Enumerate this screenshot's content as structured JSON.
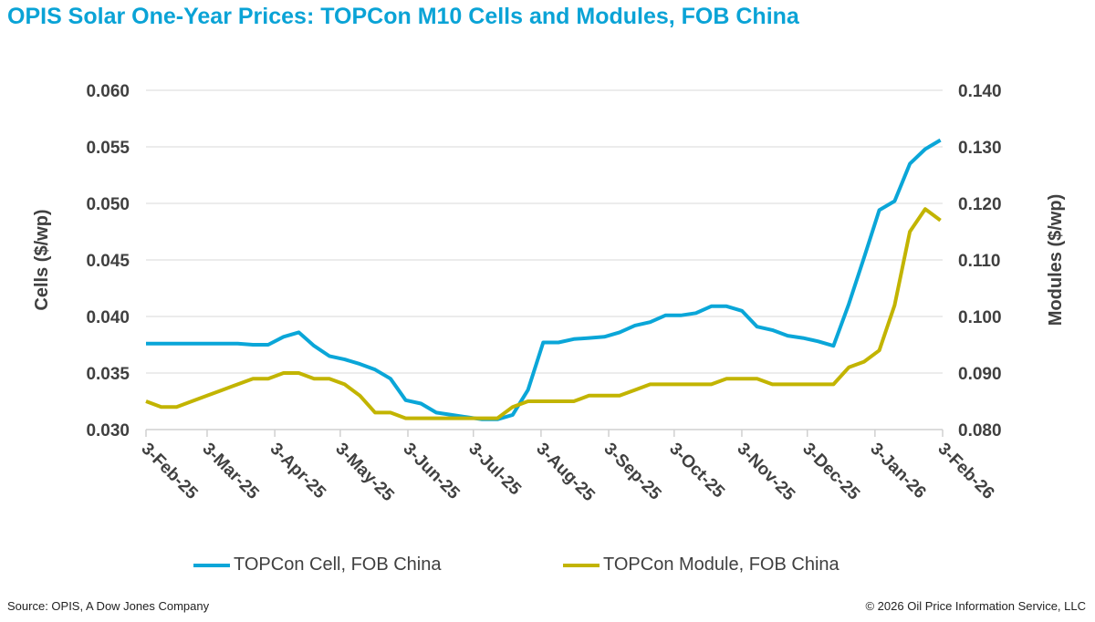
{
  "title": "OPIS Solar One-Year Prices: TOPCon M10 Cells and Modules, FOB China",
  "footer": {
    "source": "Source: OPIS, A Dow Jones Company",
    "copyright": "© 2026 Oil Price Information Service, LLC"
  },
  "chart_data": {
    "type": "line",
    "title": "OPIS Solar One-Year Prices: TOPCon M10 Cells and Modules, FOB China",
    "xlabel": "",
    "ylabel": "Cells ($/wp)",
    "y2label": "Modules ($/wp)",
    "ylim": [
      0.03,
      0.06
    ],
    "y2lim": [
      0.08,
      0.14
    ],
    "yticks": [
      "0.030",
      "0.035",
      "0.040",
      "0.045",
      "0.050",
      "0.055",
      "0.060"
    ],
    "y2ticks": [
      "0.080",
      "0.090",
      "0.100",
      "0.110",
      "0.120",
      "0.130",
      "0.140"
    ],
    "xticks": [
      "3-Feb-25",
      "3-Mar-25",
      "3-Apr-25",
      "3-May-25",
      "3-Jun-25",
      "3-Jul-25",
      "3-Aug-25",
      "3-Sep-25",
      "3-Oct-25",
      "3-Nov-25",
      "3-Dec-25",
      "3-Jan-26",
      "3-Feb-26"
    ],
    "xtick_dates": [
      "2025-02-03",
      "2025-03-03",
      "2025-04-03",
      "2025-05-03",
      "2025-06-03",
      "2025-07-03",
      "2025-08-03",
      "2025-09-03",
      "2025-10-03",
      "2025-11-03",
      "2025-12-03",
      "2026-01-03",
      "2026-02-03"
    ],
    "grid": true,
    "legend_position": "bottom",
    "x": [
      "2025-02-03",
      "2025-02-10",
      "2025-02-17",
      "2025-02-24",
      "2025-03-03",
      "2025-03-10",
      "2025-03-17",
      "2025-03-24",
      "2025-03-31",
      "2025-04-07",
      "2025-04-14",
      "2025-04-21",
      "2025-04-28",
      "2025-05-05",
      "2025-05-12",
      "2025-05-19",
      "2025-05-26",
      "2025-06-02",
      "2025-06-09",
      "2025-06-16",
      "2025-06-23",
      "2025-06-30",
      "2025-07-07",
      "2025-07-14",
      "2025-07-21",
      "2025-07-28",
      "2025-08-04",
      "2025-08-11",
      "2025-08-18",
      "2025-08-25",
      "2025-09-01",
      "2025-09-08",
      "2025-09-15",
      "2025-09-22",
      "2025-09-29",
      "2025-10-06",
      "2025-10-13",
      "2025-10-20",
      "2025-10-27",
      "2025-11-03",
      "2025-11-10",
      "2025-11-17",
      "2025-11-24",
      "2025-12-01",
      "2025-12-08",
      "2025-12-15",
      "2025-12-22",
      "2025-12-29",
      "2026-01-05",
      "2026-01-12",
      "2026-01-19",
      "2026-01-26",
      "2026-02-02"
    ],
    "series": [
      {
        "name": "TOPCon Cell, FOB China",
        "axis": "left",
        "color": "#0aa6d8",
        "values": [
          0.0376,
          0.0376,
          0.0376,
          0.0376,
          0.0376,
          0.0376,
          0.0376,
          0.0375,
          0.0375,
          0.0382,
          0.0386,
          0.0374,
          0.0365,
          0.0362,
          0.0358,
          0.0353,
          0.0345,
          0.0326,
          0.0323,
          0.0315,
          0.0313,
          0.0311,
          0.0309,
          0.0309,
          0.0313,
          0.0335,
          0.0377,
          0.0377,
          0.038,
          0.0381,
          0.0382,
          0.0386,
          0.0392,
          0.0395,
          0.0401,
          0.0401,
          0.0403,
          0.0409,
          0.0409,
          0.0405,
          0.0391,
          0.0388,
          0.0383,
          0.0381,
          0.0378,
          0.0374,
          0.0411,
          0.0452,
          0.0494,
          0.0502,
          0.0535,
          0.0548,
          0.0556
        ]
      },
      {
        "name": "TOPCon Module, FOB China",
        "axis": "right",
        "color": "#c2b400",
        "values": [
          0.085,
          0.084,
          0.084,
          0.085,
          0.086,
          0.087,
          0.088,
          0.089,
          0.089,
          0.09,
          0.09,
          0.089,
          0.089,
          0.088,
          0.086,
          0.083,
          0.083,
          0.082,
          0.082,
          0.082,
          0.082,
          0.082,
          0.082,
          0.082,
          0.084,
          0.085,
          0.085,
          0.085,
          0.085,
          0.086,
          0.086,
          0.086,
          0.087,
          0.088,
          0.088,
          0.088,
          0.088,
          0.088,
          0.089,
          0.089,
          0.089,
          0.088,
          0.088,
          0.088,
          0.088,
          0.088,
          0.091,
          0.092,
          0.094,
          0.102,
          0.115,
          0.119,
          0.117
        ]
      }
    ]
  }
}
